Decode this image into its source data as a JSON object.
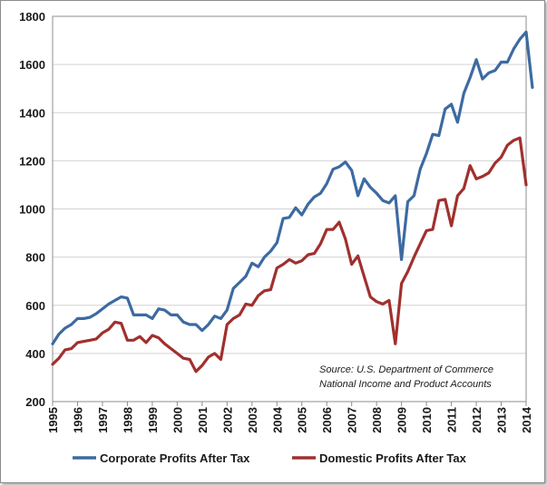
{
  "chart_data": {
    "type": "line",
    "title": "",
    "xlabel": "",
    "ylabel": "",
    "xlim": [
      1995,
      2014
    ],
    "ylim": [
      200,
      1800
    ],
    "x_ticks": [
      "1995",
      "1996",
      "1997",
      "1998",
      "1999",
      "2000",
      "2001",
      "2002",
      "2003",
      "2004",
      "2005",
      "2006",
      "2007",
      "2008",
      "2009",
      "2010",
      "2011",
      "2012",
      "2013",
      "2014"
    ],
    "y_ticks": [
      "200",
      "400",
      "600",
      "800",
      "1000",
      "1200",
      "1400",
      "1600",
      "1800"
    ],
    "grid": "horizontal",
    "legend_position": "bottom",
    "annotation": [
      "Source:  U.S. Department  of Commerce",
      "National Income and Product Accounts"
    ],
    "series": [
      {
        "name": "Corporate Profits After Tax",
        "color": "#3d6aa1",
        "points": [
          [
            1995.0,
            440
          ],
          [
            1995.25,
            480
          ],
          [
            1995.5,
            505
          ],
          [
            1995.75,
            520
          ],
          [
            1996.0,
            545
          ],
          [
            1996.25,
            545
          ],
          [
            1996.5,
            550
          ],
          [
            1996.75,
            565
          ],
          [
            1997.0,
            585
          ],
          [
            1997.25,
            605
          ],
          [
            1997.5,
            620
          ],
          [
            1997.75,
            635
          ],
          [
            1998.0,
            630
          ],
          [
            1998.25,
            560
          ],
          [
            1998.5,
            560
          ],
          [
            1998.75,
            560
          ],
          [
            1999.0,
            545
          ],
          [
            1999.25,
            585
          ],
          [
            1999.5,
            580
          ],
          [
            1999.75,
            560
          ],
          [
            2000.0,
            560
          ],
          [
            2000.25,
            530
          ],
          [
            2000.5,
            520
          ],
          [
            2000.75,
            520
          ],
          [
            2001.0,
            495
          ],
          [
            2001.25,
            520
          ],
          [
            2001.5,
            555
          ],
          [
            2001.75,
            545
          ],
          [
            2002.0,
            580
          ],
          [
            2002.25,
            670
          ],
          [
            2002.5,
            695
          ],
          [
            2002.75,
            720
          ],
          [
            2003.0,
            775
          ],
          [
            2003.25,
            760
          ],
          [
            2003.5,
            800
          ],
          [
            2003.75,
            825
          ],
          [
            2004.0,
            860
          ],
          [
            2004.25,
            960
          ],
          [
            2004.5,
            965
          ],
          [
            2004.75,
            1005
          ],
          [
            2005.0,
            975
          ],
          [
            2005.25,
            1020
          ],
          [
            2005.5,
            1050
          ],
          [
            2005.75,
            1065
          ],
          [
            2006.0,
            1105
          ],
          [
            2006.25,
            1165
          ],
          [
            2006.5,
            1175
          ],
          [
            2006.75,
            1195
          ],
          [
            2007.0,
            1160
          ],
          [
            2007.25,
            1055
          ],
          [
            2007.5,
            1125
          ],
          [
            2007.75,
            1090
          ],
          [
            2008.0,
            1065
          ],
          [
            2008.25,
            1035
          ],
          [
            2008.5,
            1025
          ],
          [
            2008.75,
            1055
          ],
          [
            2009.0,
            790
          ],
          [
            2009.25,
            1030
          ],
          [
            2009.5,
            1055
          ],
          [
            2009.75,
            1165
          ],
          [
            2010.0,
            1230
          ],
          [
            2010.25,
            1310
          ],
          [
            2010.5,
            1305
          ],
          [
            2010.75,
            1415
          ],
          [
            2011.0,
            1435
          ],
          [
            2011.25,
            1360
          ],
          [
            2011.5,
            1480
          ],
          [
            2011.75,
            1545
          ],
          [
            2012.0,
            1620
          ],
          [
            2012.25,
            1540
          ],
          [
            2012.5,
            1565
          ],
          [
            2012.75,
            1575
          ],
          [
            2013.0,
            1610
          ],
          [
            2013.25,
            1610
          ],
          [
            2013.5,
            1665
          ],
          [
            2013.75,
            1705
          ],
          [
            2014.0,
            1735
          ],
          [
            2014.25,
            1505
          ]
        ]
      },
      {
        "name": "Domestic Profits After Tax",
        "color": "#a0302e",
        "points": [
          [
            1995.0,
            355
          ],
          [
            1995.25,
            380
          ],
          [
            1995.5,
            415
          ],
          [
            1995.75,
            420
          ],
          [
            1996.0,
            445
          ],
          [
            1996.25,
            450
          ],
          [
            1996.5,
            455
          ],
          [
            1996.75,
            460
          ],
          [
            1997.0,
            485
          ],
          [
            1997.25,
            500
          ],
          [
            1997.5,
            530
          ],
          [
            1997.75,
            525
          ],
          [
            1998.0,
            455
          ],
          [
            1998.25,
            455
          ],
          [
            1998.5,
            470
          ],
          [
            1998.75,
            445
          ],
          [
            1999.0,
            475
          ],
          [
            1999.25,
            465
          ],
          [
            1999.5,
            440
          ],
          [
            1999.75,
            420
          ],
          [
            2000.0,
            400
          ],
          [
            2000.25,
            380
          ],
          [
            2000.5,
            375
          ],
          [
            2000.75,
            325
          ],
          [
            2001.0,
            350
          ],
          [
            2001.25,
            385
          ],
          [
            2001.5,
            400
          ],
          [
            2001.75,
            375
          ],
          [
            2002.0,
            520
          ],
          [
            2002.25,
            545
          ],
          [
            2002.5,
            560
          ],
          [
            2002.75,
            605
          ],
          [
            2003.0,
            600
          ],
          [
            2003.25,
            640
          ],
          [
            2003.5,
            660
          ],
          [
            2003.75,
            665
          ],
          [
            2004.0,
            755
          ],
          [
            2004.25,
            770
          ],
          [
            2004.5,
            790
          ],
          [
            2004.75,
            775
          ],
          [
            2005.0,
            785
          ],
          [
            2005.25,
            810
          ],
          [
            2005.5,
            815
          ],
          [
            2005.75,
            855
          ],
          [
            2006.0,
            915
          ],
          [
            2006.25,
            915
          ],
          [
            2006.5,
            945
          ],
          [
            2006.75,
            875
          ],
          [
            2007.0,
            770
          ],
          [
            2007.25,
            805
          ],
          [
            2007.5,
            720
          ],
          [
            2007.75,
            635
          ],
          [
            2008.0,
            615
          ],
          [
            2008.25,
            605
          ],
          [
            2008.5,
            620
          ],
          [
            2008.75,
            440
          ],
          [
            2009.0,
            690
          ],
          [
            2009.25,
            740
          ],
          [
            2009.5,
            800
          ],
          [
            2009.75,
            855
          ],
          [
            2010.0,
            910
          ],
          [
            2010.25,
            915
          ],
          [
            2010.5,
            1035
          ],
          [
            2010.75,
            1040
          ],
          [
            2011.0,
            930
          ],
          [
            2011.25,
            1055
          ],
          [
            2011.5,
            1085
          ],
          [
            2011.75,
            1180
          ],
          [
            2012.0,
            1125
          ],
          [
            2012.25,
            1135
          ],
          [
            2012.5,
            1150
          ],
          [
            2012.75,
            1190
          ],
          [
            2013.0,
            1215
          ],
          [
            2013.25,
            1265
          ],
          [
            2013.5,
            1285
          ],
          [
            2013.75,
            1295
          ],
          [
            2014.0,
            1100
          ]
        ]
      }
    ]
  }
}
